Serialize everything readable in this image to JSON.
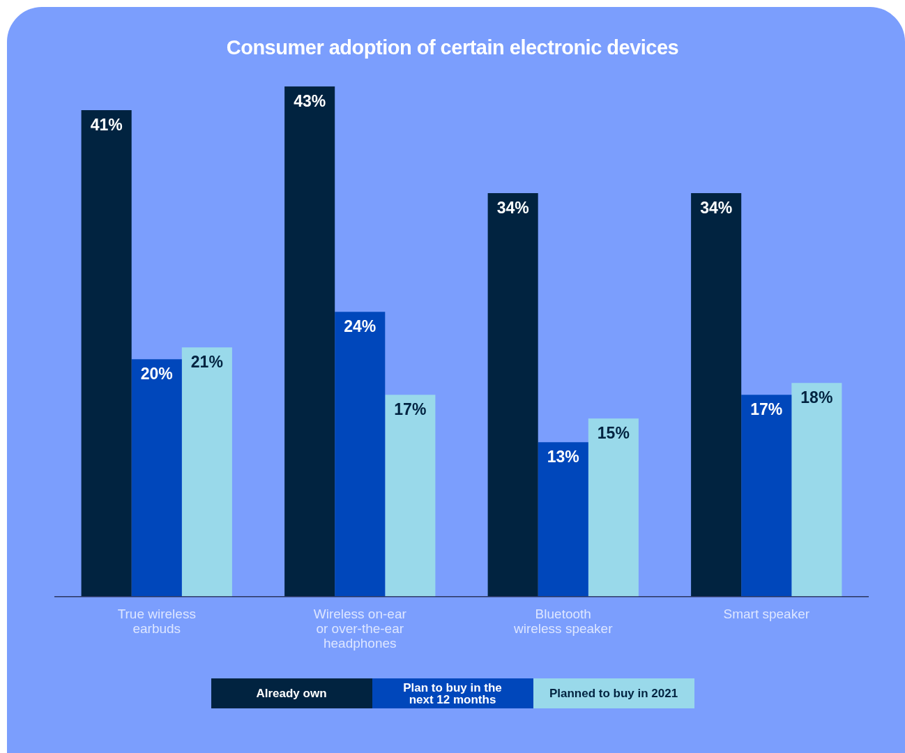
{
  "chart_data": {
    "type": "bar",
    "title": "Consumer adoption of certain electronic devices",
    "categories": [
      "True wireless earbuds",
      "Wireless on-ear or over-the-ear headphones",
      "Bluetooth wireless speaker",
      "Smart speaker"
    ],
    "series": [
      {
        "name": "Already own",
        "color": "#012340",
        "values": [
          41,
          43,
          34,
          34
        ],
        "value_labels": [
          "41%",
          "43%",
          "34%",
          "34%"
        ]
      },
      {
        "name": "Plan to buy in the next 12 months",
        "color": "#0047bb",
        "values": [
          20,
          24,
          13,
          17
        ],
        "value_labels": [
          "20%",
          "24%",
          "13%",
          "17%"
        ]
      },
      {
        "name": "Planned to buy in 2021",
        "color": "#99d9ea",
        "values": [
          21,
          17,
          15,
          18
        ],
        "value_labels": [
          "21%",
          "17%",
          "15%",
          "18%"
        ]
      }
    ],
    "legend": "bottom",
    "grid": false
  }
}
